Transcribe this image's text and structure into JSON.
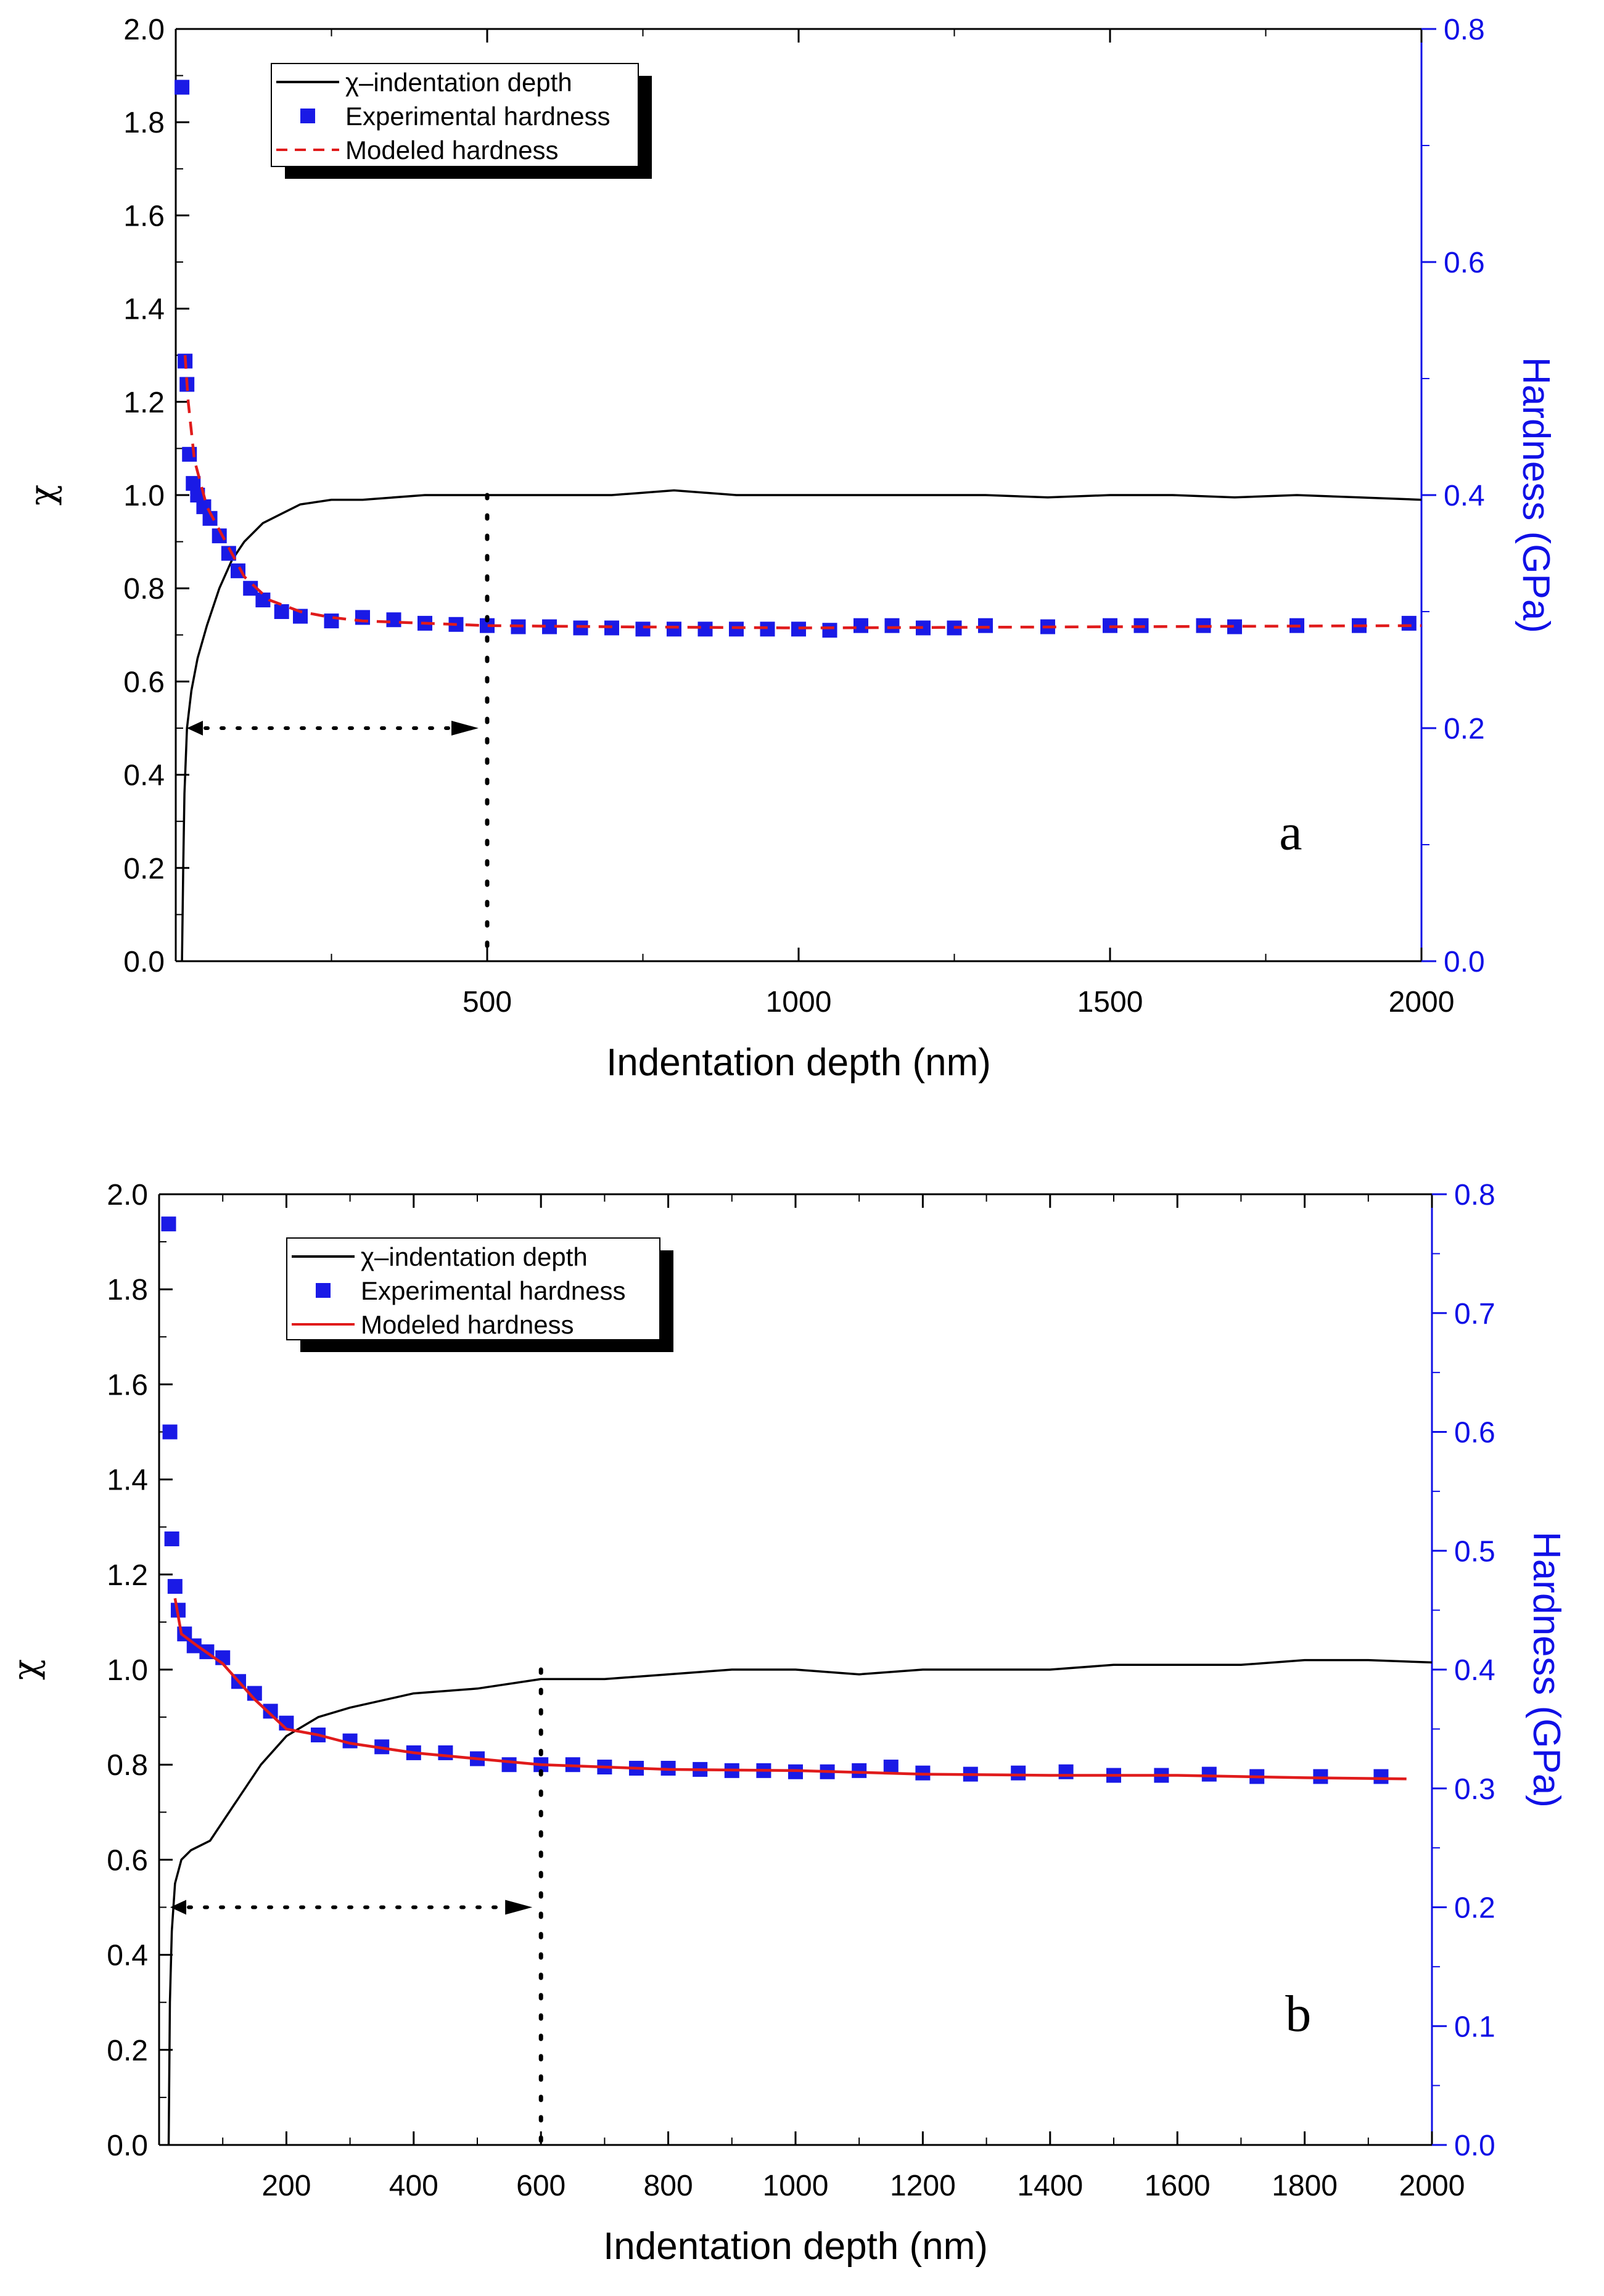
{
  "charts": [
    {
      "id": "a",
      "panel_label": "a",
      "x_axis": {
        "label": "Indentation depth (nm)",
        "range": [
          0,
          2000
        ],
        "ticks": [
          500,
          1000,
          1500,
          2000
        ],
        "tick_labels": [
          "500",
          "1000",
          "1500",
          "2000"
        ]
      },
      "y_left": {
        "label": "χ",
        "range": [
          0.0,
          2.0
        ],
        "ticks": [
          0.0,
          0.2,
          0.4,
          0.6,
          0.8,
          1.0,
          1.2,
          1.4,
          1.6,
          1.8,
          2.0
        ],
        "tick_labels": [
          "0.0",
          "0.2",
          "0.4",
          "0.6",
          "0.8",
          "1.0",
          "1.2",
          "1.4",
          "1.6",
          "1.8",
          "2.0"
        ]
      },
      "y_right": {
        "label": "Hardness (GPa)",
        "range": [
          0.0,
          0.8
        ],
        "ticks": [
          0.0,
          0.2,
          0.4,
          0.6,
          0.8
        ],
        "tick_labels": [
          "0.0",
          "0.2",
          "0.4",
          "0.6",
          "0.8"
        ],
        "color": "#1010e6"
      },
      "legend": [
        {
          "label": "χ–indentation depth",
          "style": "solid",
          "color": "#000000"
        },
        {
          "label": "Experimental hardness",
          "style": "marker",
          "color": "#1a1ae6"
        },
        {
          "label": "Modeled hardness",
          "style": "dashed",
          "color": "#e01b1b"
        }
      ],
      "annotation": {
        "depth_marker_nm": 500,
        "arrow_chi": 0.5
      },
      "series": [
        {
          "name": "χ–indentation depth",
          "axis": "left",
          "color": "#000000",
          "points": [
            [
              10,
              0.0
            ],
            [
              12,
              0.2
            ],
            [
              14,
              0.36
            ],
            [
              18,
              0.5
            ],
            [
              25,
              0.58
            ],
            [
              35,
              0.65
            ],
            [
              50,
              0.72
            ],
            [
              70,
              0.8
            ],
            [
              90,
              0.86
            ],
            [
              110,
              0.9
            ],
            [
              140,
              0.94
            ],
            [
              170,
              0.96
            ],
            [
              200,
              0.98
            ],
            [
              250,
              0.99
            ],
            [
              300,
              0.99
            ],
            [
              400,
              1.0
            ],
            [
              500,
              1.0
            ],
            [
              600,
              1.0
            ],
            [
              700,
              1.0
            ],
            [
              800,
              1.01
            ],
            [
              900,
              1.0
            ],
            [
              1000,
              1.0
            ],
            [
              1100,
              1.0
            ],
            [
              1200,
              1.0
            ],
            [
              1300,
              1.0
            ],
            [
              1400,
              0.995
            ],
            [
              1500,
              1.0
            ],
            [
              1600,
              1.0
            ],
            [
              1700,
              0.995
            ],
            [
              1800,
              1.0
            ],
            [
              1900,
              0.995
            ],
            [
              2000,
              0.99
            ]
          ]
        },
        {
          "name": "Experimental hardness",
          "axis": "right",
          "color": "#1a1ae6",
          "points": [
            [
              10,
              0.75
            ],
            [
              15,
              0.515
            ],
            [
              18,
              0.495
            ],
            [
              22,
              0.435
            ],
            [
              28,
              0.41
            ],
            [
              35,
              0.4
            ],
            [
              45,
              0.39
            ],
            [
              55,
              0.38
            ],
            [
              70,
              0.365
            ],
            [
              85,
              0.35
            ],
            [
              100,
              0.335
            ],
            [
              120,
              0.32
            ],
            [
              140,
              0.31
            ],
            [
              170,
              0.3
            ],
            [
              200,
              0.296
            ],
            [
              250,
              0.292
            ],
            [
              300,
              0.295
            ],
            [
              350,
              0.293
            ],
            [
              400,
              0.29
            ],
            [
              450,
              0.289
            ],
            [
              500,
              0.288
            ],
            [
              550,
              0.287
            ],
            [
              600,
              0.287
            ],
            [
              650,
              0.286
            ],
            [
              700,
              0.286
            ],
            [
              750,
              0.285
            ],
            [
              800,
              0.285
            ],
            [
              850,
              0.285
            ],
            [
              900,
              0.285
            ],
            [
              950,
              0.285
            ],
            [
              1000,
              0.285
            ],
            [
              1050,
              0.284
            ],
            [
              1100,
              0.288
            ],
            [
              1150,
              0.288
            ],
            [
              1200,
              0.286
            ],
            [
              1250,
              0.286
            ],
            [
              1300,
              0.288
            ],
            [
              1400,
              0.287
            ],
            [
              1500,
              0.288
            ],
            [
              1550,
              0.288
            ],
            [
              1650,
              0.288
            ],
            [
              1700,
              0.287
            ],
            [
              1800,
              0.288
            ],
            [
              1900,
              0.288
            ],
            [
              1980,
              0.29
            ]
          ]
        },
        {
          "name": "Modeled hardness",
          "axis": "right",
          "color": "#e01b1b",
          "style": "dashed",
          "points": [
            [
              15,
              0.52
            ],
            [
              20,
              0.48
            ],
            [
              30,
              0.43
            ],
            [
              50,
              0.39
            ],
            [
              80,
              0.36
            ],
            [
              110,
              0.33
            ],
            [
              150,
              0.31
            ],
            [
              200,
              0.3
            ],
            [
              250,
              0.295
            ],
            [
              300,
              0.292
            ],
            [
              400,
              0.29
            ],
            [
              500,
              0.288
            ],
            [
              700,
              0.287
            ],
            [
              1000,
              0.286
            ],
            [
              1500,
              0.287
            ],
            [
              2000,
              0.288
            ]
          ]
        }
      ]
    },
    {
      "id": "b",
      "panel_label": "b",
      "x_axis": {
        "label": "Indentation depth (nm)",
        "range": [
          0,
          2000
        ],
        "ticks": [
          200,
          400,
          600,
          800,
          1000,
          1200,
          1400,
          1600,
          1800,
          2000
        ],
        "tick_labels": [
          "200",
          "400",
          "600",
          "800",
          "1000",
          "1200",
          "1400",
          "1600",
          "1800",
          "2000"
        ]
      },
      "y_left": {
        "label": "χ",
        "range": [
          0.0,
          2.0
        ],
        "ticks": [
          0.0,
          0.2,
          0.4,
          0.6,
          0.8,
          1.0,
          1.2,
          1.4,
          1.6,
          1.8,
          2.0
        ],
        "tick_labels": [
          "0.0",
          "0.2",
          "0.4",
          "0.6",
          "0.8",
          "1.0",
          "1.2",
          "1.4",
          "1.6",
          "1.8",
          "2.0"
        ]
      },
      "y_right": {
        "label": "Hardness (GPa)",
        "range": [
          0.0,
          0.8
        ],
        "ticks": [
          0.0,
          0.1,
          0.2,
          0.3,
          0.4,
          0.5,
          0.6,
          0.7,
          0.8
        ],
        "tick_labels": [
          "0.0",
          "0.1",
          "0.2",
          "0.3",
          "0.4",
          "0.5",
          "0.6",
          "0.7",
          "0.8"
        ],
        "color": "#1010e6"
      },
      "legend": [
        {
          "label": "χ–indentation depth",
          "style": "solid",
          "color": "#000000"
        },
        {
          "label": "Experimental hardness",
          "style": "marker",
          "color": "#1a1ae6"
        },
        {
          "label": "Modeled hardness",
          "style": "solid",
          "color": "#e01b1b"
        }
      ],
      "annotation": {
        "depth_marker_nm": 600,
        "arrow_chi": 0.5
      },
      "series": [
        {
          "name": "χ–indentation depth",
          "axis": "left",
          "color": "#000000",
          "points": [
            [
              15,
              0.0
            ],
            [
              17,
              0.3
            ],
            [
              20,
              0.45
            ],
            [
              25,
              0.55
            ],
            [
              35,
              0.6
            ],
            [
              50,
              0.62
            ],
            [
              80,
              0.64
            ],
            [
              120,
              0.72
            ],
            [
              160,
              0.8
            ],
            [
              200,
              0.86
            ],
            [
              250,
              0.9
            ],
            [
              300,
              0.92
            ],
            [
              400,
              0.95
            ],
            [
              500,
              0.96
            ],
            [
              600,
              0.98
            ],
            [
              700,
              0.98
            ],
            [
              800,
              0.99
            ],
            [
              900,
              1.0
            ],
            [
              1000,
              1.0
            ],
            [
              1100,
              0.99
            ],
            [
              1200,
              1.0
            ],
            [
              1300,
              1.0
            ],
            [
              1400,
              1.0
            ],
            [
              1500,
              1.01
            ],
            [
              1600,
              1.01
            ],
            [
              1700,
              1.01
            ],
            [
              1800,
              1.02
            ],
            [
              1900,
              1.02
            ],
            [
              2000,
              1.015
            ]
          ]
        },
        {
          "name": "Experimental hardness",
          "axis": "right",
          "color": "#1a1ae6",
          "points": [
            [
              15,
              0.775
            ],
            [
              17,
              0.6
            ],
            [
              20,
              0.51
            ],
            [
              25,
              0.47
            ],
            [
              30,
              0.45
            ],
            [
              40,
              0.43
            ],
            [
              55,
              0.42
            ],
            [
              75,
              0.415
            ],
            [
              100,
              0.41
            ],
            [
              125,
              0.39
            ],
            [
              150,
              0.38
            ],
            [
              175,
              0.365
            ],
            [
              200,
              0.355
            ],
            [
              250,
              0.345
            ],
            [
              300,
              0.34
            ],
            [
              350,
              0.335
            ],
            [
              400,
              0.33
            ],
            [
              450,
              0.33
            ],
            [
              500,
              0.325
            ],
            [
              550,
              0.32
            ],
            [
              600,
              0.32
            ],
            [
              650,
              0.32
            ],
            [
              700,
              0.318
            ],
            [
              750,
              0.317
            ],
            [
              800,
              0.317
            ],
            [
              850,
              0.316
            ],
            [
              900,
              0.315
            ],
            [
              950,
              0.315
            ],
            [
              1000,
              0.314
            ],
            [
              1050,
              0.314
            ],
            [
              1100,
              0.315
            ],
            [
              1150,
              0.318
            ],
            [
              1200,
              0.313
            ],
            [
              1275,
              0.312
            ],
            [
              1350,
              0.313
            ],
            [
              1425,
              0.314
            ],
            [
              1500,
              0.311
            ],
            [
              1575,
              0.311
            ],
            [
              1650,
              0.312
            ],
            [
              1725,
              0.31
            ],
            [
              1825,
              0.31
            ],
            [
              1920,
              0.31
            ]
          ]
        },
        {
          "name": "Modeled hardness",
          "axis": "right",
          "color": "#e01b1b",
          "style": "solid",
          "points": [
            [
              25,
              0.46
            ],
            [
              35,
              0.43
            ],
            [
              60,
              0.42
            ],
            [
              100,
              0.405
            ],
            [
              150,
              0.375
            ],
            [
              200,
              0.35
            ],
            [
              250,
              0.345
            ],
            [
              300,
              0.338
            ],
            [
              400,
              0.33
            ],
            [
              500,
              0.325
            ],
            [
              600,
              0.32
            ],
            [
              800,
              0.316
            ],
            [
              1000,
              0.315
            ],
            [
              1200,
              0.312
            ],
            [
              1400,
              0.311
            ],
            [
              1600,
              0.311
            ],
            [
              1800,
              0.309
            ],
            [
              1960,
              0.308
            ]
          ]
        }
      ]
    }
  ],
  "chart_data": [
    {
      "type": "line",
      "panel": "a",
      "xlabel": "Indentation depth (nm)",
      "ylabel": "χ",
      "y2label": "Hardness (GPa)",
      "xlim": [
        0,
        2000
      ],
      "ylim": [
        0.0,
        2.0
      ],
      "y2lim": [
        0.0,
        0.8
      ]
    },
    {
      "type": "line",
      "panel": "b",
      "xlabel": "Indentation depth (nm)",
      "ylabel": "χ",
      "y2label": "Hardness (GPa)",
      "xlim": [
        0,
        2000
      ],
      "ylim": [
        0.0,
        2.0
      ],
      "y2lim": [
        0.0,
        0.8
      ]
    }
  ]
}
